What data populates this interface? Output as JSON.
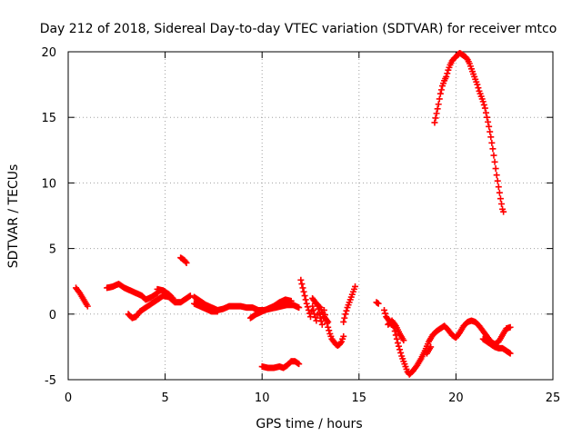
{
  "chart_data": {
    "type": "scatter",
    "title": "Day 212 of 2018, Sidereal Day-to-day VTEC variation (SDTVAR) for receiver mtco",
    "xlabel": "GPS time / hours",
    "ylabel": "SDTVAR / TECUs",
    "xlim": [
      0,
      25
    ],
    "ylim": [
      -5,
      20
    ],
    "xticks": [
      0,
      5,
      10,
      15,
      20,
      25
    ],
    "yticks": [
      -5,
      0,
      5,
      10,
      15,
      20
    ],
    "grid": true,
    "marker": "+",
    "color": "#ff0000",
    "series": [
      {
        "name": "SDTVAR",
        "segments": [
          [
            [
              0.4,
              2.0
            ],
            [
              0.6,
              1.6
            ],
            [
              0.8,
              1.1
            ],
            [
              1.0,
              0.6
            ]
          ],
          [
            [
              2.0,
              2.0
            ],
            [
              2.3,
              2.1
            ],
            [
              2.6,
              2.3
            ],
            [
              2.9,
              2.0
            ],
            [
              3.2,
              1.8
            ],
            [
              3.5,
              1.6
            ],
            [
              3.8,
              1.4
            ],
            [
              4.0,
              1.1
            ],
            [
              4.3,
              1.3
            ],
            [
              4.6,
              1.6
            ]
          ],
          [
            [
              3.1,
              0.0
            ],
            [
              3.3,
              -0.3
            ],
            [
              3.5,
              -0.2
            ],
            [
              3.7,
              0.2
            ],
            [
              4.0,
              0.5
            ],
            [
              4.3,
              0.8
            ],
            [
              4.6,
              1.1
            ],
            [
              4.9,
              1.4
            ],
            [
              5.2,
              1.3
            ],
            [
              5.5,
              0.9
            ],
            [
              5.8,
              0.9
            ],
            [
              6.1,
              1.2
            ],
            [
              6.3,
              1.4
            ]
          ],
          [
            [
              4.6,
              1.9
            ],
            [
              4.9,
              1.8
            ],
            [
              5.2,
              1.5
            ],
            [
              5.4,
              1.2
            ]
          ],
          [
            [
              5.8,
              4.3
            ],
            [
              6.0,
              4.1
            ],
            [
              6.1,
              3.9
            ]
          ],
          [
            [
              6.5,
              1.3
            ],
            [
              6.8,
              1.0
            ],
            [
              7.1,
              0.7
            ],
            [
              7.4,
              0.5
            ],
            [
              7.7,
              0.3
            ],
            [
              8.0,
              0.4
            ],
            [
              8.3,
              0.6
            ],
            [
              8.6,
              0.6
            ],
            [
              8.9,
              0.6
            ],
            [
              9.2,
              0.5
            ],
            [
              9.5,
              0.5
            ],
            [
              9.8,
              0.3
            ],
            [
              10.1,
              0.3
            ],
            [
              10.4,
              0.4
            ],
            [
              10.7,
              0.5
            ],
            [
              11.0,
              0.6
            ],
            [
              11.3,
              0.7
            ],
            [
              11.6,
              0.7
            ],
            [
              11.9,
              0.5
            ]
          ],
          [
            [
              6.5,
              0.8
            ],
            [
              6.8,
              0.6
            ],
            [
              7.1,
              0.4
            ],
            [
              7.4,
              0.2
            ],
            [
              7.7,
              0.2
            ]
          ],
          [
            [
              9.4,
              -0.3
            ],
            [
              9.7,
              0.0
            ],
            [
              10.0,
              0.2
            ],
            [
              10.3,
              0.4
            ],
            [
              10.6,
              0.6
            ],
            [
              10.9,
              0.9
            ],
            [
              11.2,
              1.1
            ],
            [
              11.5,
              1.0
            ]
          ],
          [
            [
              10.0,
              -4.0
            ],
            [
              10.3,
              -4.1
            ],
            [
              10.6,
              -4.1
            ],
            [
              10.9,
              -4.0
            ],
            [
              11.1,
              -4.1
            ],
            [
              11.3,
              -3.9
            ],
            [
              11.5,
              -3.6
            ],
            [
              11.7,
              -3.6
            ],
            [
              11.9,
              -3.8
            ]
          ],
          [
            [
              12.0,
              2.6
            ],
            [
              12.1,
              2.0
            ],
            [
              12.2,
              1.4
            ],
            [
              12.3,
              0.8
            ],
            [
              12.4,
              0.3
            ],
            [
              12.5,
              -0.2
            ],
            [
              12.6,
              0.6
            ],
            [
              12.7,
              0.0
            ],
            [
              12.8,
              -0.5
            ],
            [
              12.9,
              0.4
            ],
            [
              13.0,
              -0.3
            ],
            [
              13.1,
              -0.8
            ],
            [
              13.2,
              0.3
            ],
            [
              13.3,
              -0.4
            ],
            [
              13.4,
              -1.0
            ],
            [
              13.5,
              -1.5
            ],
            [
              13.6,
              -1.9
            ],
            [
              13.7,
              -2.1
            ],
            [
              13.8,
              -2.3
            ],
            [
              13.9,
              -2.4
            ],
            [
              14.0,
              -2.3
            ],
            [
              14.1,
              -2.1
            ],
            [
              14.2,
              -1.7
            ]
          ],
          [
            [
              12.6,
              1.2
            ],
            [
              12.8,
              0.8
            ],
            [
              13.0,
              0.5
            ],
            [
              13.2,
              -0.2
            ],
            [
              13.4,
              -0.6
            ]
          ],
          [
            [
              14.2,
              -0.6
            ],
            [
              14.3,
              0.0
            ],
            [
              14.4,
              0.5
            ],
            [
              14.5,
              0.9
            ],
            [
              14.6,
              1.3
            ],
            [
              14.7,
              1.7
            ],
            [
              14.8,
              2.1
            ]
          ],
          [
            [
              15.9,
              0.9
            ],
            [
              16.0,
              0.8
            ]
          ],
          [
            [
              16.3,
              0.3
            ],
            [
              16.4,
              -0.2
            ],
            [
              16.6,
              -0.6
            ],
            [
              16.8,
              -1.0
            ],
            [
              16.9,
              -1.6
            ],
            [
              17.0,
              -2.2
            ],
            [
              17.1,
              -2.7
            ],
            [
              17.2,
              -3.2
            ],
            [
              17.3,
              -3.6
            ],
            [
              17.4,
              -4.0
            ],
            [
              17.5,
              -4.4
            ],
            [
              17.6,
              -4.6
            ],
            [
              17.8,
              -4.3
            ],
            [
              18.0,
              -3.9
            ],
            [
              18.2,
              -3.4
            ],
            [
              18.4,
              -2.8
            ],
            [
              18.6,
              -2.1
            ],
            [
              18.8,
              -1.6
            ],
            [
              19.0,
              -1.3
            ],
            [
              19.2,
              -1.1
            ],
            [
              19.4,
              -0.9
            ],
            [
              19.6,
              -1.2
            ],
            [
              19.8,
              -1.6
            ],
            [
              20.0,
              -1.8
            ],
            [
              20.2,
              -1.4
            ],
            [
              20.4,
              -0.9
            ],
            [
              20.6,
              -0.6
            ],
            [
              20.8,
              -0.5
            ],
            [
              21.0,
              -0.6
            ],
            [
              21.2,
              -0.9
            ],
            [
              21.4,
              -1.3
            ],
            [
              21.6,
              -1.7
            ],
            [
              21.8,
              -2.1
            ],
            [
              22.0,
              -2.3
            ],
            [
              22.2,
              -2.1
            ],
            [
              22.4,
              -1.6
            ],
            [
              22.6,
              -1.1
            ],
            [
              22.8,
              -1.0
            ]
          ],
          [
            [
              16.5,
              -0.8
            ],
            [
              16.7,
              -0.5
            ],
            [
              16.9,
              -0.9
            ],
            [
              17.1,
              -1.5
            ],
            [
              17.3,
              -2.0
            ]
          ],
          [
            [
              18.5,
              -3.0
            ],
            [
              18.7,
              -2.5
            ]
          ],
          [
            [
              21.4,
              -1.9
            ],
            [
              21.6,
              -2.1
            ],
            [
              21.8,
              -2.3
            ],
            [
              22.0,
              -2.5
            ],
            [
              22.2,
              -2.6
            ],
            [
              22.4,
              -2.6
            ],
            [
              22.6,
              -2.8
            ],
            [
              22.8,
              -3.0
            ]
          ],
          [
            [
              18.9,
              14.6
            ],
            [
              19.0,
              15.3
            ],
            [
              19.1,
              16.0
            ],
            [
              19.2,
              16.8
            ],
            [
              19.3,
              17.4
            ],
            [
              19.4,
              17.8
            ],
            [
              19.5,
              18.1
            ],
            [
              19.6,
              18.6
            ],
            [
              19.7,
              19.0
            ],
            [
              19.8,
              19.3
            ],
            [
              19.9,
              19.5
            ],
            [
              20.0,
              19.6
            ],
            [
              20.1,
              19.8
            ],
            [
              20.2,
              19.9
            ],
            [
              20.3,
              19.8
            ],
            [
              20.4,
              19.7
            ],
            [
              20.5,
              19.6
            ],
            [
              20.6,
              19.4
            ],
            [
              20.7,
              19.1
            ],
            [
              20.8,
              18.7
            ],
            [
              20.9,
              18.3
            ],
            [
              21.0,
              17.9
            ],
            [
              21.1,
              17.5
            ],
            [
              21.2,
              17.0
            ],
            [
              21.3,
              16.6
            ],
            [
              21.4,
              16.2
            ],
            [
              21.5,
              15.7
            ],
            [
              21.6,
              15.0
            ],
            [
              21.7,
              14.3
            ],
            [
              21.8,
              13.5
            ],
            [
              21.9,
              12.6
            ],
            [
              22.0,
              11.6
            ],
            [
              22.1,
              10.6
            ],
            [
              22.2,
              9.7
            ],
            [
              22.3,
              8.8
            ],
            [
              22.4,
              8.0
            ],
            [
              22.45,
              7.8
            ]
          ]
        ]
      }
    ]
  }
}
